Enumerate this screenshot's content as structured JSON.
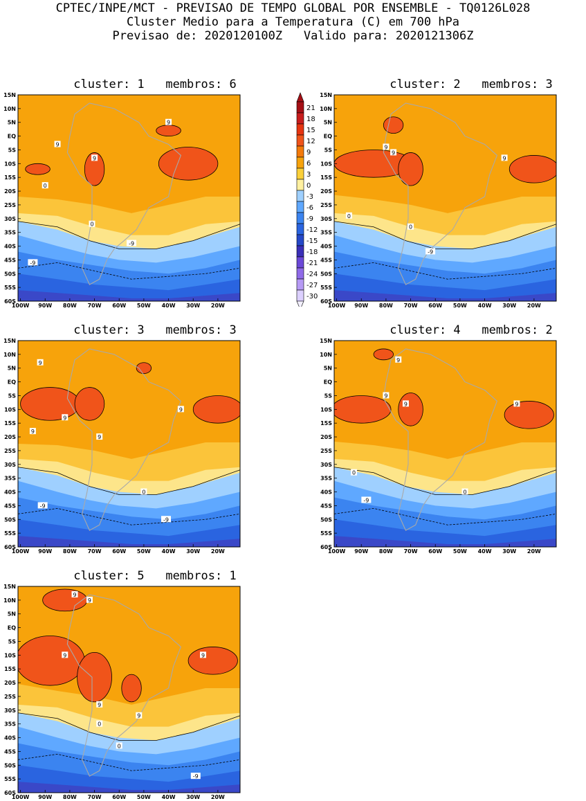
{
  "header": {
    "line1": "CPTEC/INPE/MCT - PREVISAO DE TEMPO GLOBAL POR ENSEMBLE - TQ0126L028",
    "line2": "Cluster Medio para a Temperatura (C) em 700 hPa",
    "line3": "Previsao de: 2020120100Z   Valido para: 2020121306Z"
  },
  "lat_ticks": [
    "15N",
    "10N",
    "5N",
    "EQ",
    "5S",
    "10S",
    "15S",
    "20S",
    "25S",
    "30S",
    "35S",
    "40S",
    "45S",
    "50S",
    "55S",
    "60S"
  ],
  "lon_ticks": [
    "100W",
    "90W",
    "80W",
    "70W",
    "60W",
    "50W",
    "40W",
    "30W",
    "20W"
  ],
  "colorbar": {
    "labels": [
      "21",
      "18",
      "15",
      "12",
      "9",
      "6",
      "3",
      "0",
      "-3",
      "-6",
      "-9",
      "-12",
      "-15",
      "-18",
      "-21",
      "-24",
      "-27",
      "-30"
    ],
    "colors": [
      "#a50f15",
      "#c81d1d",
      "#e63410",
      "#f0541a",
      "#f47a0a",
      "#f7a30b",
      "#fbd03a",
      "#fff0a0",
      "#9fd0ff",
      "#5fa8ff",
      "#3b84f0",
      "#2a64e0",
      "#2548c8",
      "#3a2fb8",
      "#6b48d8",
      "#8f6ae8",
      "#b69af5",
      "#dcd0ff"
    ]
  },
  "panels": [
    {
      "title": "cluster: 1   membros: 6",
      "contours": [
        "9",
        "9",
        "9",
        "0",
        "0",
        "-9",
        "-9"
      ]
    },
    {
      "title": "cluster: 2   membros: 3",
      "contours": [
        "9",
        "9",
        "9",
        "0",
        "0",
        "-9"
      ]
    },
    {
      "title": "cluster: 3   membros: 3",
      "contours": [
        "9",
        "9",
        "9",
        "9",
        "9",
        "0",
        "-9",
        "-9"
      ]
    },
    {
      "title": "cluster: 4   membros: 2",
      "contours": [
        "9",
        "9",
        "9",
        "9",
        "0",
        "0",
        "-9"
      ]
    },
    {
      "title": "cluster: 5   membros: 1",
      "contours": [
        "9",
        "9",
        "9",
        "9",
        "9",
        "9",
        "0",
        "0",
        "-9"
      ]
    }
  ]
}
